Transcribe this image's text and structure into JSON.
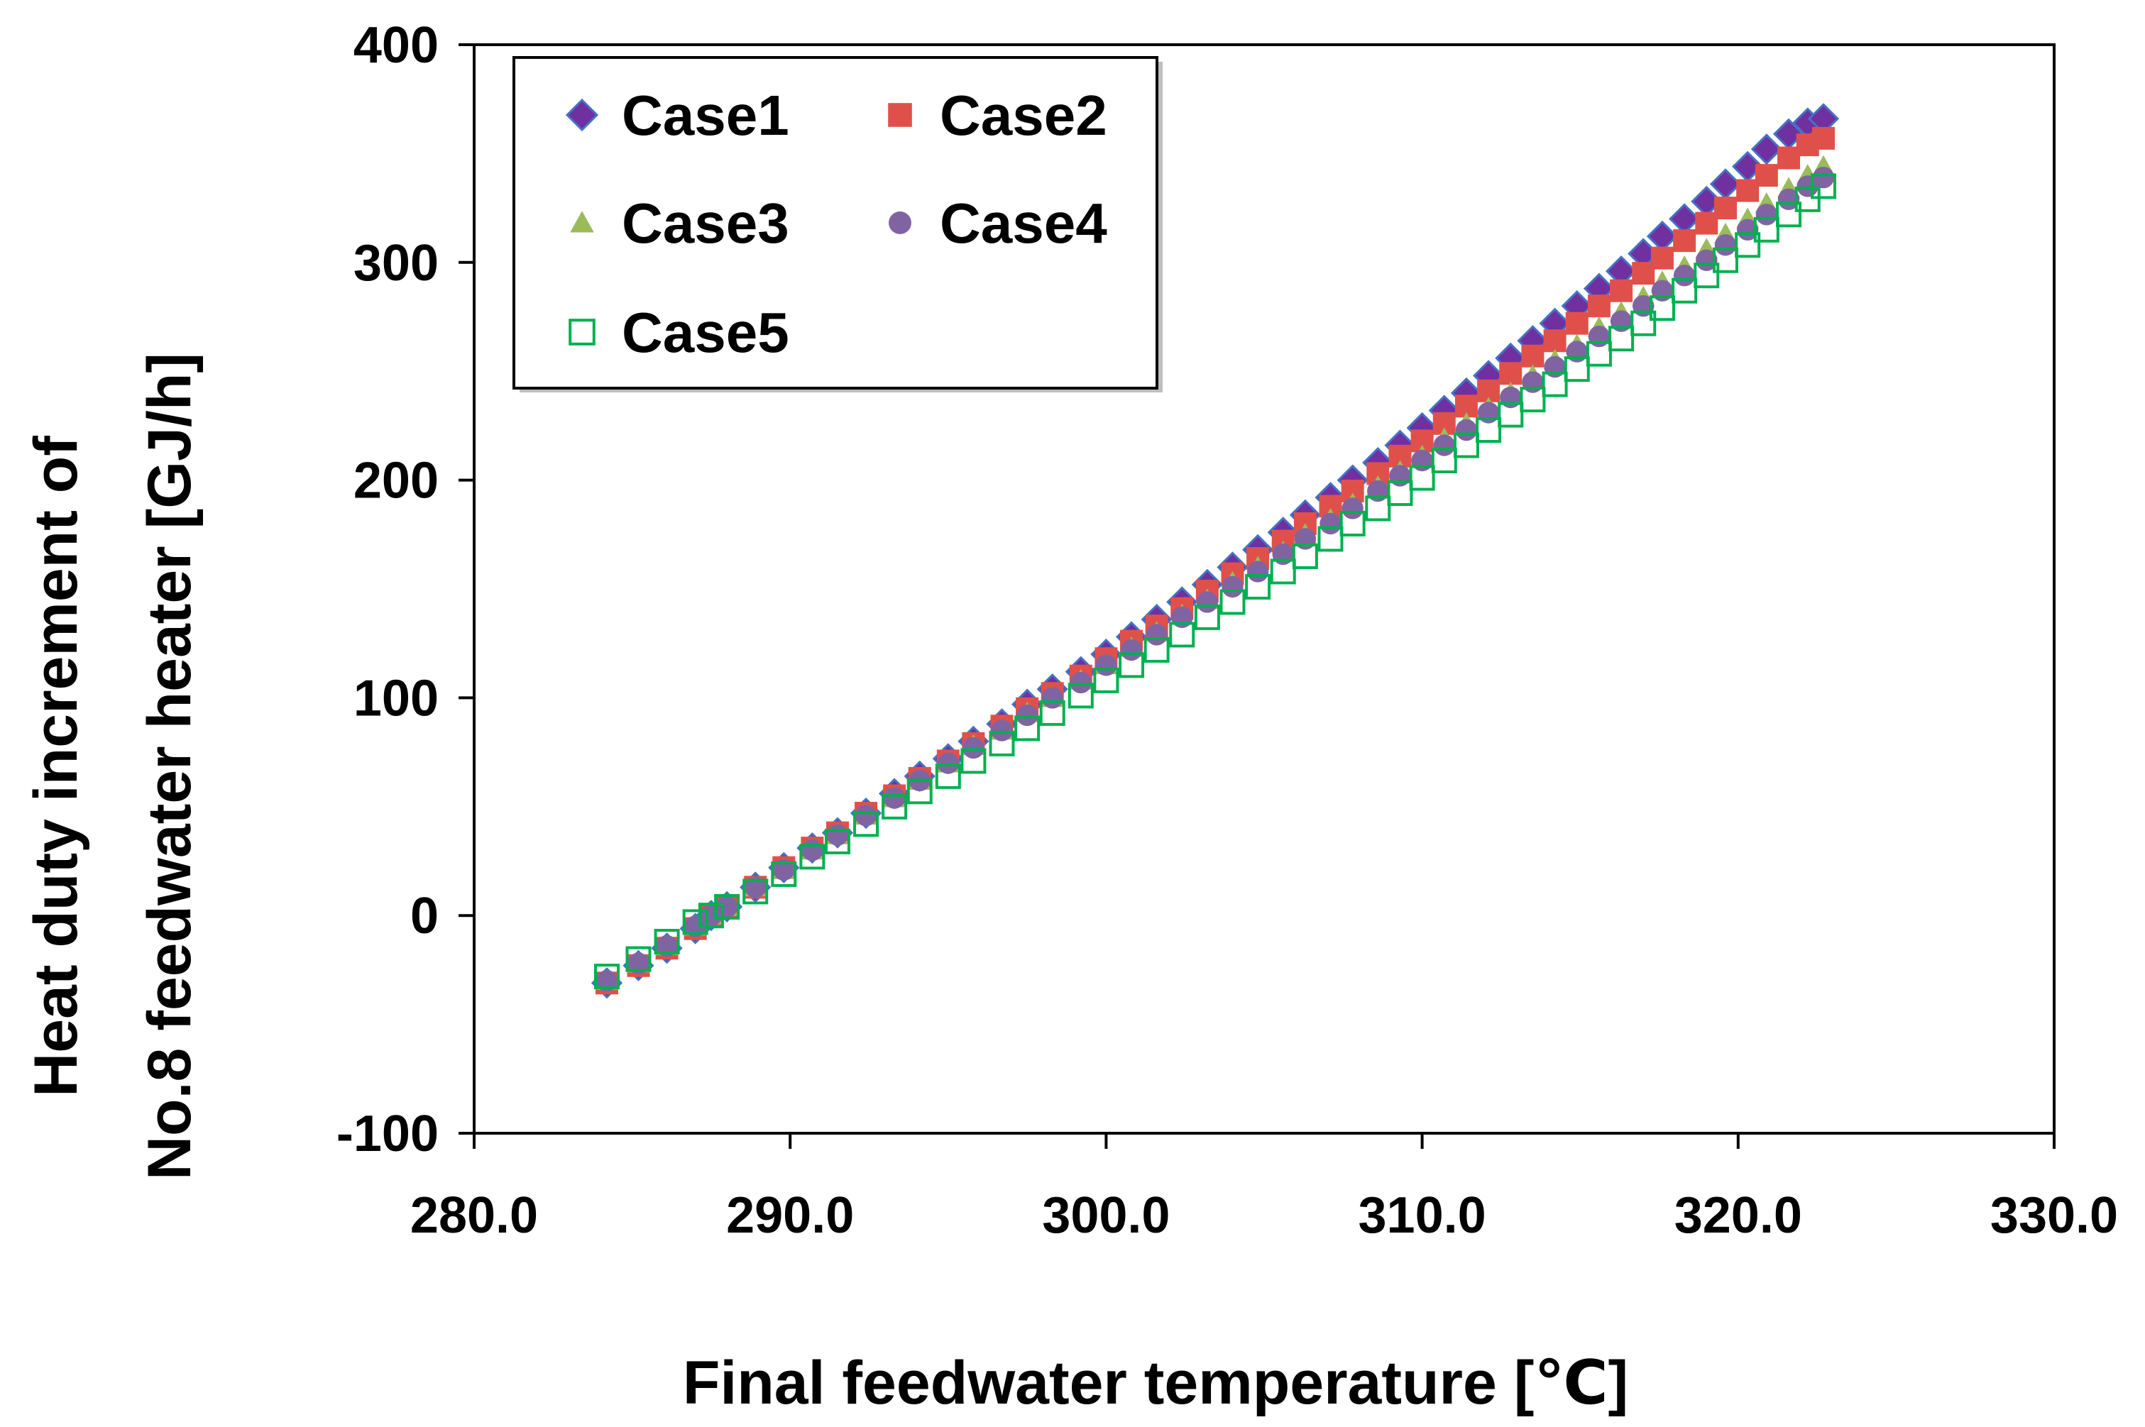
{
  "chart_data": {
    "type": "scatter",
    "xlabel": "Final feedwater temperature [℃]",
    "ylabel_lines": [
      "Heat duty increment of",
      "No.8 feedwater heater [GJ/h]"
    ],
    "xlim": [
      280,
      330
    ],
    "ylim": [
      -100,
      400
    ],
    "x_ticks": [
      "280.0",
      "290.0",
      "300.0",
      "310.0",
      "320.0",
      "330.0"
    ],
    "y_ticks": [
      "-100",
      "0",
      "100",
      "200",
      "300",
      "400"
    ],
    "grid": false,
    "legend_position": "top-left",
    "x": [
      284.2,
      285.2,
      286.1,
      287.0,
      287.5,
      288.0,
      288.9,
      289.8,
      290.7,
      291.5,
      292.4,
      293.3,
      294.1,
      295.0,
      295.8,
      296.7,
      297.5,
      298.3,
      299.2,
      300.0,
      300.8,
      301.6,
      302.4,
      303.2,
      304.0,
      304.8,
      305.6,
      306.3,
      307.1,
      307.8,
      308.6,
      309.3,
      310.0,
      310.7,
      311.4,
      312.1,
      312.8,
      313.5,
      314.2,
      314.9,
      315.6,
      316.3,
      317.0,
      317.6,
      318.3,
      319.0,
      319.6,
      320.3,
      320.9,
      321.6,
      322.2,
      322.7
    ],
    "series": [
      {
        "name": "Case1",
        "marker": "diamond",
        "color": "#7030A0",
        "edge": "#4472C4",
        "values": [
          -31,
          -23,
          -15,
          -6,
          0,
          4,
          13,
          22,
          31,
          38,
          47,
          56,
          64,
          72,
          80,
          88,
          97,
          104,
          112,
          120,
          128,
          136,
          144,
          152,
          160,
          168,
          176,
          184,
          192,
          200,
          208,
          216,
          224,
          232,
          240,
          248,
          256,
          264,
          272,
          280,
          288,
          296,
          304,
          312,
          320,
          328,
          336,
          344,
          352,
          359,
          364,
          366
        ]
      },
      {
        "name": "Case2",
        "marker": "square",
        "color": "#E0504A",
        "values": [
          -31,
          -23,
          -15,
          -6,
          0,
          4,
          13,
          22,
          31,
          38,
          47,
          55,
          63,
          71,
          79,
          87,
          95,
          102,
          110,
          118,
          126,
          133,
          141,
          149,
          157,
          164,
          172,
          180,
          188,
          195,
          203,
          211,
          218,
          226,
          234,
          241,
          249,
          257,
          264,
          272,
          280,
          287,
          295,
          302,
          310,
          318,
          325,
          333,
          340,
          348,
          354,
          357
        ]
      },
      {
        "name": "Case3",
        "marker": "triangle",
        "color": "#9BBB59",
        "values": [
          -30,
          -22,
          -14,
          -5,
          0,
          4,
          13,
          21,
          30,
          37,
          46,
          54,
          62,
          70,
          78,
          85,
          93,
          100,
          108,
          115,
          123,
          130,
          138,
          145,
          153,
          160,
          167,
          175,
          182,
          189,
          197,
          204,
          211,
          219,
          226,
          233,
          240,
          248,
          255,
          262,
          270,
          277,
          284,
          291,
          298,
          306,
          313,
          320,
          327,
          334,
          340,
          344
        ]
      },
      {
        "name": "Case4",
        "marker": "circle",
        "color": "#8064A2",
        "values": [
          -30,
          -22,
          -14,
          -5,
          0,
          4,
          13,
          21,
          30,
          37,
          46,
          54,
          62,
          70,
          77,
          85,
          92,
          100,
          107,
          115,
          122,
          129,
          137,
          144,
          151,
          158,
          166,
          173,
          180,
          187,
          195,
          202,
          209,
          216,
          223,
          231,
          238,
          245,
          252,
          259,
          266,
          273,
          280,
          287,
          294,
          301,
          308,
          315,
          322,
          329,
          335,
          339
        ]
      },
      {
        "name": "Case5",
        "marker": "open-square",
        "color": "#00B050",
        "values": [
          -28,
          -20,
          -12,
          -3,
          0,
          4,
          11,
          19,
          27,
          34,
          42,
          50,
          57,
          64,
          71,
          79,
          86,
          93,
          101,
          108,
          115,
          122,
          129,
          137,
          144,
          151,
          158,
          165,
          173,
          180,
          187,
          194,
          201,
          209,
          216,
          223,
          230,
          237,
          244,
          251,
          258,
          265,
          272,
          279,
          287,
          294,
          301,
          308,
          315,
          322,
          329,
          335
        ]
      }
    ]
  }
}
